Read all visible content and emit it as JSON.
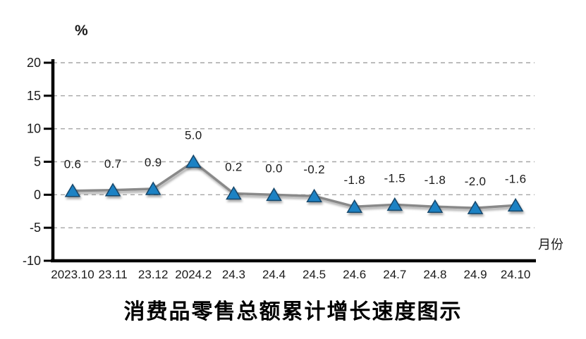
{
  "chart_data": {
    "type": "line",
    "title": "消费品零售总额累计增长速度图示",
    "unit_label": "%",
    "x_axis_label": "月份",
    "categories": [
      "2023.10",
      "23.11",
      "23.12",
      "2024.2",
      "24.3",
      "24.4",
      "24.5",
      "24.6",
      "24.7",
      "24.8",
      "24.9",
      "24.10"
    ],
    "values": [
      0.6,
      0.7,
      0.9,
      5.0,
      0.2,
      0.0,
      -0.2,
      -1.8,
      -1.5,
      -1.8,
      -2.0,
      -1.6
    ],
    "data_labels": [
      "0.6",
      "0.7",
      "0.9",
      "5.0",
      "0.2",
      "0.0",
      "-0.2",
      "-1.8",
      "-1.5",
      "-1.8",
      "-2.0",
      "-1.6"
    ],
    "y_ticks": [
      20,
      15,
      10,
      5,
      0,
      -5,
      -10
    ],
    "ylim": [
      -10,
      20
    ],
    "grid": "dashed-horizontal",
    "legend": "none",
    "marker_shape": "triangle",
    "colors": {
      "line": "#898989",
      "marker_fill": "#1e82c4",
      "marker_stroke": "#16466b",
      "grid": "#a6a6a6",
      "axis": "#000000",
      "text": "#1a1a1a"
    }
  }
}
